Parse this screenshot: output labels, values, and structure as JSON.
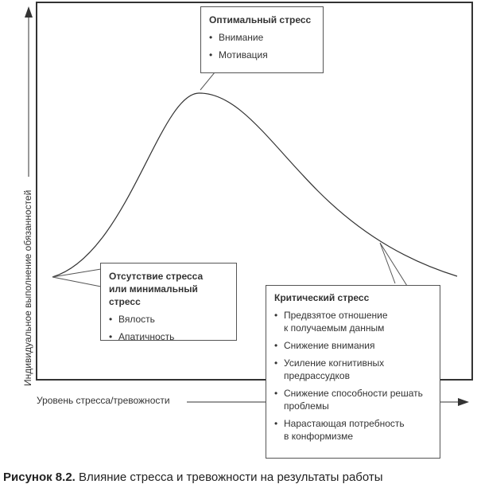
{
  "axes": {
    "y_label": "Индивидуальное выполнение обязанностей",
    "x_label": "Уровень стресса/тревожности"
  },
  "boxes": {
    "optimal": {
      "title": "Оптимальный стресс",
      "items": [
        "Внимание",
        "Мотивация"
      ]
    },
    "minimal": {
      "title_line1": "Отсутствие стресса",
      "title_line2": "или минимальный стресс",
      "items": [
        "Вялость",
        "Апатичность"
      ]
    },
    "critical": {
      "title": "Критический стресс",
      "items": [
        {
          "l1": "Предвзятое отношение",
          "l2": "к получаемым данным"
        },
        {
          "l1": "Снижение внимания",
          "l2": ""
        },
        {
          "l1": "Усиление когнитивных",
          "l2": "предрассудков"
        },
        {
          "l1": "Снижение способности решать",
          "l2": "проблемы"
        },
        {
          "l1": "Нарастающая потребность",
          "l2": "в конформизме"
        }
      ]
    }
  },
  "caption": {
    "number": "Рисунок 8.2.",
    "text": "Влияние стресса и тревожности на результаты работы"
  }
}
